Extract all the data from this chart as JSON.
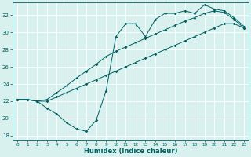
{
  "xlabel": "Humidex (Indice chaleur)",
  "background_color": "#d8f0ee",
  "grid_color": "#ffffff",
  "line_color": "#006060",
  "xlim": [
    -0.5,
    23.5
  ],
  "ylim": [
    17.5,
    33.5
  ],
  "yticks": [
    18,
    20,
    22,
    24,
    26,
    28,
    30,
    32
  ],
  "xticks": [
    0,
    1,
    2,
    3,
    4,
    5,
    6,
    7,
    8,
    9,
    10,
    11,
    12,
    13,
    14,
    15,
    16,
    17,
    18,
    19,
    20,
    21,
    22,
    23
  ],
  "series1_x": [
    0,
    1,
    2,
    3,
    4,
    5,
    6,
    7,
    8,
    9,
    10,
    11,
    12,
    13,
    14,
    15,
    16,
    17,
    18,
    19,
    20,
    21,
    22,
    23
  ],
  "series1_y": [
    22.2,
    22.2,
    22.0,
    21.2,
    20.5,
    19.5,
    18.8,
    18.5,
    19.8,
    23.2,
    29.5,
    31.0,
    31.0,
    29.5,
    31.5,
    32.2,
    32.2,
    32.5,
    32.2,
    33.2,
    32.7,
    32.5,
    31.7,
    30.7
  ],
  "series2_x": [
    0,
    1,
    2,
    3,
    4,
    5,
    6,
    7,
    8,
    9,
    10,
    11,
    12,
    13,
    14,
    15,
    16,
    17,
    18,
    19,
    20,
    21,
    22,
    23
  ],
  "series2_y": [
    22.2,
    22.2,
    22.0,
    22.2,
    23.0,
    23.8,
    24.7,
    25.5,
    26.3,
    27.2,
    27.8,
    28.3,
    28.8,
    29.3,
    29.8,
    30.3,
    30.8,
    31.3,
    31.7,
    32.2,
    32.5,
    32.3,
    31.5,
    30.5
  ],
  "series3_x": [
    0,
    1,
    2,
    3,
    4,
    5,
    6,
    7,
    8,
    9,
    10,
    11,
    12,
    13,
    14,
    15,
    16,
    17,
    18,
    19,
    20,
    21,
    22,
    23
  ],
  "series3_y": [
    22.2,
    22.2,
    22.0,
    22.0,
    22.5,
    23.0,
    23.5,
    24.0,
    24.5,
    25.0,
    25.5,
    26.0,
    26.5,
    27.0,
    27.5,
    28.0,
    28.5,
    29.0,
    29.5,
    30.0,
    30.5,
    31.0,
    31.0,
    30.5
  ]
}
